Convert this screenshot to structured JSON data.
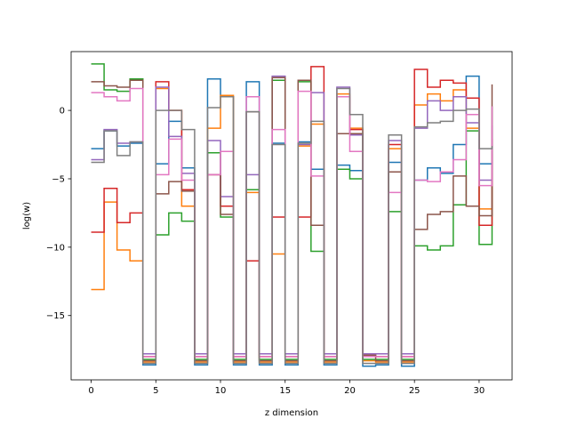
{
  "chart_data": {
    "type": "line",
    "step": "post",
    "title": "",
    "xlabel": "z dimension",
    "ylabel": "log(w)",
    "xlim": [
      -1.55,
      32.55
    ],
    "ylim": [
      -19.7,
      4.3
    ],
    "xticks": [
      0,
      5,
      10,
      15,
      20,
      25,
      30
    ],
    "yticks": [
      -15,
      -10,
      -5,
      0
    ],
    "grid": false,
    "legend": "none",
    "x": [
      0,
      1,
      2,
      3,
      4,
      5,
      6,
      7,
      8,
      9,
      10,
      11,
      12,
      13,
      14,
      15,
      16,
      17,
      18,
      19,
      20,
      21,
      22,
      23,
      24,
      25,
      26,
      27,
      28,
      29,
      30,
      31
    ],
    "series": [
      {
        "color": "#1f77b4",
        "values": [
          -2.8,
          -1.5,
          -2.6,
          -2.4,
          -18.6,
          -3.9,
          -0.8,
          -4.2,
          -18.6,
          2.3,
          1.0,
          -18.6,
          2.1,
          -18.6,
          -2.4,
          -18.6,
          -2.3,
          -4.3,
          -18.6,
          -4.0,
          -4.4,
          -18.7,
          -18.6,
          -3.8,
          -18.7,
          -5.1,
          -4.2,
          -4.6,
          -2.5,
          2.5,
          -3.9,
          -2.6
        ]
      },
      {
        "color": "#ff7f0e",
        "values": [
          -13.1,
          -6.7,
          -10.2,
          -11.0,
          -18.4,
          1.6,
          0.0,
          -7.0,
          -18.4,
          -1.3,
          1.1,
          -18.4,
          -6.0,
          -18.4,
          -10.5,
          -18.4,
          -2.6,
          -1.0,
          -18.4,
          1.2,
          -1.3,
          -18.3,
          -18.4,
          -2.8,
          -18.4,
          0.4,
          1.2,
          0.7,
          1.5,
          -1.3,
          -7.2,
          -3.2
        ]
      },
      {
        "color": "#2ca02c",
        "values": [
          3.4,
          1.5,
          1.4,
          2.3,
          -18.2,
          -9.1,
          -7.5,
          -8.1,
          -18.2,
          -3.1,
          -7.8,
          -18.2,
          -5.8,
          -18.2,
          2.2,
          -18.2,
          2.1,
          -10.3,
          -18.2,
          -4.3,
          -5.0,
          -18.2,
          -18.2,
          -7.4,
          -18.2,
          -9.9,
          -10.2,
          -9.9,
          -6.9,
          -1.5,
          -9.8,
          0.3
        ]
      },
      {
        "color": "#d62728",
        "values": [
          -8.9,
          -5.7,
          -8.2,
          -7.5,
          -18.0,
          2.1,
          0.0,
          -5.8,
          -18.0,
          -4.7,
          -7.0,
          -18.0,
          -11.0,
          -18.0,
          -7.8,
          -18.0,
          -7.8,
          3.2,
          -18.0,
          -1.7,
          -1.4,
          -17.9,
          -18.0,
          -2.5,
          -18.0,
          3.0,
          1.7,
          2.2,
          2.0,
          0.9,
          -8.4,
          -2.1
        ]
      },
      {
        "color": "#9467bd",
        "values": [
          -3.6,
          -1.4,
          -2.4,
          -2.3,
          -17.8,
          1.7,
          -1.9,
          -4.6,
          -17.8,
          -2.2,
          -6.3,
          -17.8,
          -4.7,
          -17.8,
          2.5,
          -17.8,
          -2.5,
          1.3,
          -17.8,
          1.7,
          -1.8,
          -17.8,
          -17.8,
          -2.2,
          -17.8,
          -1.3,
          0.7,
          0.0,
          1.0,
          -0.9,
          -5.1,
          -1.1
        ]
      },
      {
        "color": "#8c564b",
        "values": [
          2.1,
          1.8,
          1.7,
          2.2,
          -18.3,
          -6.1,
          -5.2,
          -5.9,
          -18.3,
          -4.7,
          -7.6,
          -18.3,
          -0.1,
          -18.3,
          2.4,
          -18.3,
          2.2,
          -8.4,
          -18.3,
          -1.7,
          -1.7,
          -17.9,
          -18.3,
          -4.5,
          -18.3,
          -8.7,
          -7.6,
          -7.4,
          -4.8,
          -7.0,
          -7.7,
          1.9
        ]
      },
      {
        "color": "#e377c2",
        "values": [
          1.3,
          1.0,
          0.7,
          1.6,
          -18.0,
          -4.7,
          -2.1,
          -5.1,
          -18.0,
          -4.7,
          -3.0,
          -18.0,
          1.0,
          -18.0,
          -1.4,
          -18.0,
          1.4,
          -4.8,
          -18.0,
          1.0,
          -3.0,
          -18.0,
          -18.0,
          -6.0,
          -18.0,
          -5.1,
          -5.2,
          -4.5,
          -3.6,
          -0.3,
          -5.5,
          0.3
        ]
      },
      {
        "color": "#7f7f7f",
        "values": [
          -3.8,
          -1.5,
          -3.3,
          -2.3,
          -18.5,
          0.0,
          0.0,
          -1.4,
          -18.5,
          0.2,
          1.0,
          -18.5,
          -0.1,
          -18.5,
          -2.5,
          -18.5,
          -2.4,
          -0.8,
          -18.5,
          1.6,
          -0.3,
          -18.5,
          -18.5,
          -1.8,
          -18.5,
          -1.2,
          -0.9,
          -0.8,
          0.0,
          0.1,
          -2.8,
          -2.6
        ]
      }
    ]
  }
}
